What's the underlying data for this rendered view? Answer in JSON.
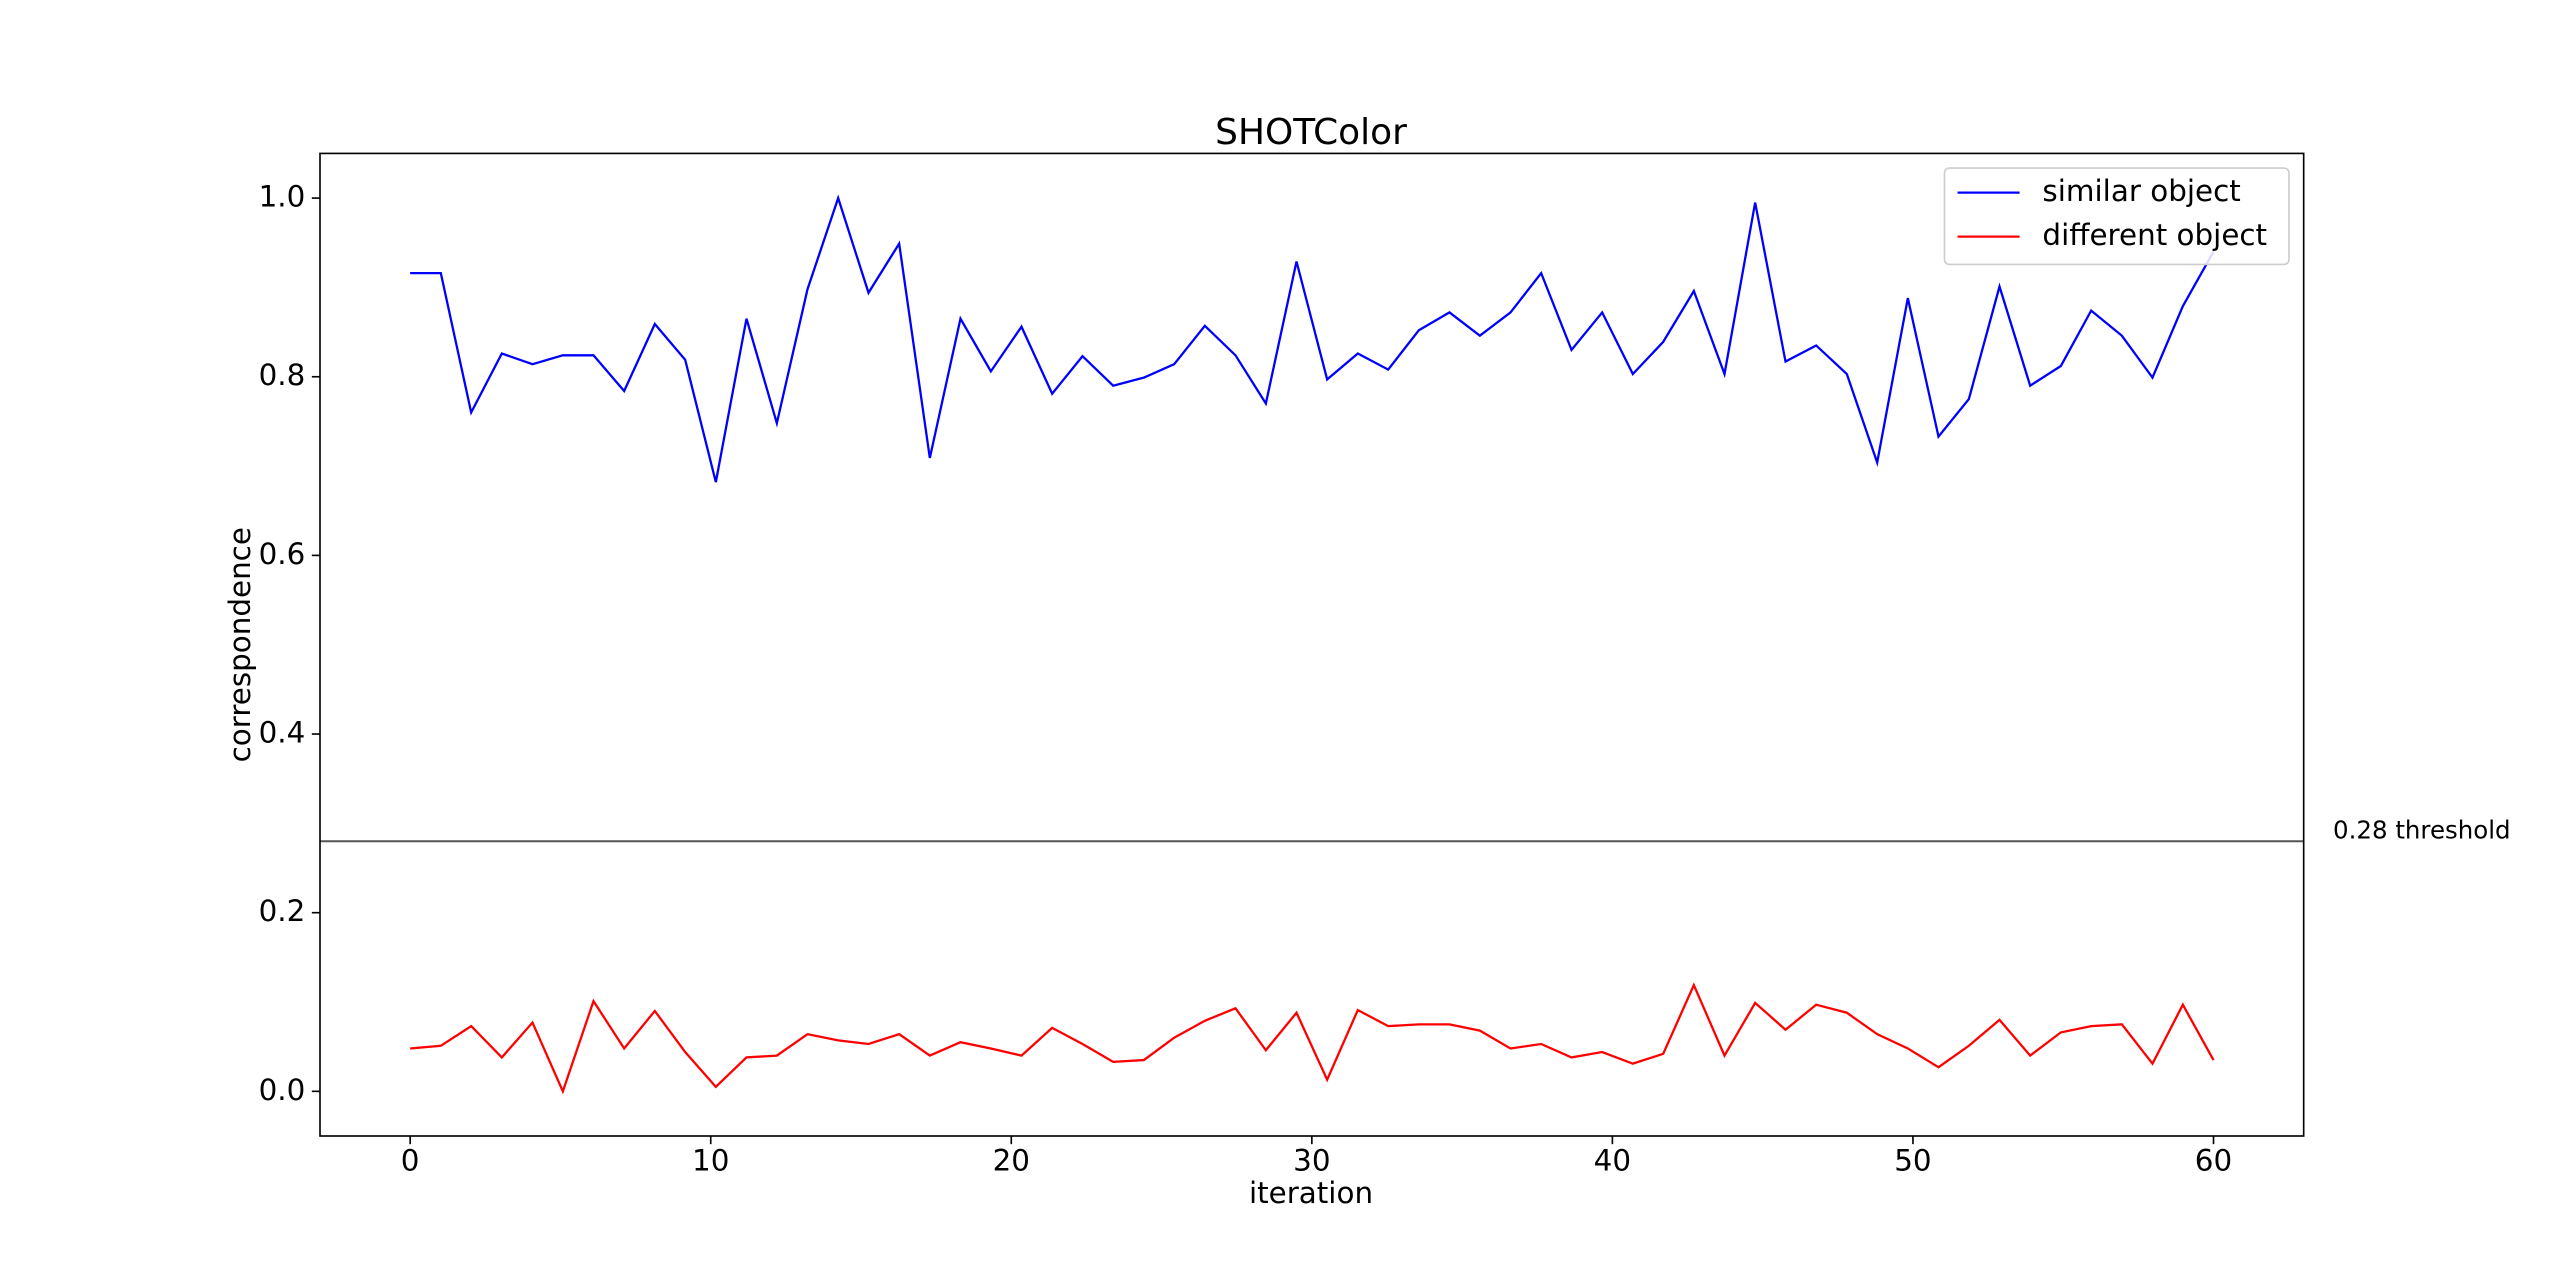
{
  "chart_data": {
    "type": "line",
    "title": "SHOTColor",
    "xlabel": "iteration",
    "ylabel": "correspondence",
    "x": [
      0,
      1.02,
      2.03,
      3.05,
      4.07,
      5.08,
      6.1,
      7.12,
      8.14,
      9.15,
      10.17,
      11.19,
      12.2,
      13.22,
      14.24,
      15.25,
      16.27,
      17.29,
      18.31,
      19.32,
      20.34,
      21.36,
      22.37,
      23.39,
      24.41,
      25.42,
      26.44,
      27.46,
      28.47,
      29.49,
      30.51,
      31.53,
      32.54,
      33.56,
      34.58,
      35.59,
      36.61,
      37.63,
      38.64,
      39.66,
      40.68,
      41.69,
      42.71,
      43.73,
      44.75,
      45.76,
      46.78,
      47.8,
      48.81,
      49.83,
      50.85,
      51.86,
      52.88,
      53.9,
      54.92,
      55.93,
      56.95,
      57.97,
      58.98,
      60
    ],
    "series": [
      {
        "name": "similar object",
        "color": "#0000ff",
        "values": [
          0.916,
          0.916,
          0.76,
          0.826,
          0.814,
          0.824,
          0.824,
          0.784,
          0.859,
          0.819,
          0.682,
          0.865,
          0.748,
          0.898,
          1.0,
          0.894,
          0.949,
          0.709,
          0.865,
          0.806,
          0.856,
          0.781,
          0.823,
          0.79,
          0.799,
          0.814,
          0.857,
          0.824,
          0.77,
          0.929,
          0.797,
          0.826,
          0.808,
          0.852,
          0.872,
          0.846,
          0.872,
          0.916,
          0.83,
          0.872,
          0.803,
          0.839,
          0.896,
          0.803,
          0.995,
          0.817,
          0.835,
          0.803,
          0.704,
          0.888,
          0.733,
          0.775,
          0.901,
          0.79,
          0.812,
          0.874,
          0.846,
          0.799,
          0.879,
          0.94
        ]
      },
      {
        "name": "different object",
        "color": "#ff0000",
        "values": [
          0.048,
          0.051,
          0.073,
          0.038,
          0.077,
          0.0,
          0.101,
          0.048,
          0.09,
          0.044,
          0.005,
          0.038,
          0.04,
          0.064,
          0.057,
          0.053,
          0.064,
          0.04,
          0.055,
          0.048,
          0.04,
          0.071,
          0.053,
          0.033,
          0.035,
          0.06,
          0.079,
          0.093,
          0.046,
          0.088,
          0.013,
          0.091,
          0.073,
          0.075,
          0.075,
          0.068,
          0.048,
          0.053,
          0.038,
          0.044,
          0.031,
          0.042,
          0.119,
          0.04,
          0.099,
          0.069,
          0.097,
          0.088,
          0.064,
          0.048,
          0.027,
          0.051,
          0.08,
          0.04,
          0.066,
          0.073,
          0.075,
          0.031,
          0.097,
          0.035
        ]
      }
    ],
    "threshold": {
      "value": 0.28,
      "label": "0.28 threshold",
      "color": "#555555"
    },
    "xlim": [
      -3,
      63
    ],
    "ylim": [
      -0.05,
      1.05
    ],
    "xticks": [
      0,
      10,
      20,
      30,
      40,
      50,
      60
    ],
    "yticks": [
      {
        "value": 0,
        "label": "0.0"
      },
      0.2,
      0.4,
      0.6,
      0.8,
      {
        "value": 1,
        "label": "1.0"
      }
    ],
    "legend": "upper right",
    "grid": false
  }
}
